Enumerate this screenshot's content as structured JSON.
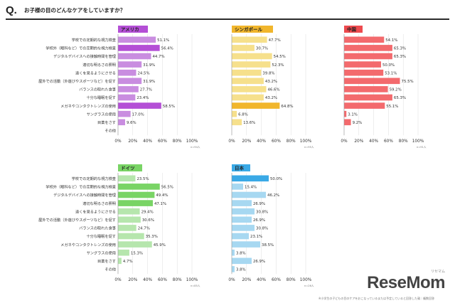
{
  "header": {
    "q_mark": "Q.",
    "question": "お子様の目のどんなケアをしていますか？"
  },
  "categories": [
    "学校での定期的な視力検査",
    "学校外（眼科など）での定期的な視力検査",
    "デジタルデバイスへの接触時間を管理",
    "適切な明るさの照明",
    "遠くを見るようにさせる",
    "屋外での活動（外遊びやスポーツなど）を促す",
    "バランスの取れた食事",
    "十分な睡眠を促す",
    "メガネやコンタクトレンズの使用",
    "サングラスの使用",
    "目薬をさす",
    "その他"
  ],
  "chart_data": [
    {
      "type": "bar",
      "name": "アメリカ",
      "n": "n=94人",
      "color": "#c98de0",
      "highlight_color": "#b44fd6",
      "values": [
        51.1,
        56.4,
        44.7,
        31.9,
        24.5,
        31.9,
        27.7,
        23.4,
        58.5,
        17.0,
        9.6,
        null
      ],
      "labels": [
        "51.1%",
        "56.4%",
        "44.7%",
        "31.9%",
        "24.5%",
        "31.9%",
        "27.7%",
        "23.4%",
        "58.5%",
        "17.0%",
        "9.6%",
        ""
      ],
      "highlight": [
        1,
        8
      ],
      "xlim": [
        0,
        100
      ],
      "ticks": [
        "0%",
        "20%",
        "40%",
        "60%",
        "80%",
        "100%"
      ]
    },
    {
      "type": "bar",
      "name": "シンガポール",
      "n": "n=95人",
      "color": "#f6e08c",
      "highlight_color": "#f1b62c",
      "values": [
        47.7,
        30.7,
        54.5,
        52.3,
        39.8,
        43.2,
        46.6,
        43.2,
        64.8,
        6.8,
        13.6,
        null
      ],
      "labels": [
        "47.7%",
        "30.7%",
        "54.5%",
        "52.3%",
        "39.8%",
        "43.2%",
        "46.6%",
        "43.2%",
        "64.8%",
        "6.8%",
        "13.6%",
        ""
      ],
      "highlight": [
        8
      ],
      "xlim": [
        0,
        100
      ],
      "ticks": [
        "0%",
        "20%",
        "40%",
        "60%",
        "80%",
        "100%"
      ]
    },
    {
      "type": "bar",
      "name": "中国",
      "n": "n=91人",
      "color": "#f36a6d",
      "highlight_color": "#ee4a4e",
      "values": [
        54.1,
        65.3,
        65.3,
        50.0,
        53.1,
        75.5,
        59.2,
        65.3,
        55.1,
        3.1,
        9.2,
        null
      ],
      "labels": [
        "54.1%",
        "65.3%",
        "65.3%",
        "50.0%",
        "53.1%",
        "75.5%",
        "59.2%",
        "65.3%",
        "55.1%",
        "3.1%",
        "9.2%",
        ""
      ],
      "highlight": [],
      "xlim": [
        0,
        100
      ],
      "ticks": [
        "0%",
        "20%",
        "40%",
        "60%",
        "80%",
        "100%"
      ]
    },
    {
      "type": "bar",
      "name": "ドイツ",
      "n": "n=85人",
      "color": "#b6e6ad",
      "highlight_color": "#79d465",
      "values": [
        23.5,
        56.5,
        49.4,
        47.1,
        29.4,
        30.6,
        24.7,
        35.3,
        45.9,
        15.3,
        4.7,
        null
      ],
      "labels": [
        "23.5%",
        "56.5%",
        "49.4%",
        "47.1%",
        "29.4%",
        "30.6%",
        "24.7%",
        "35.3%",
        "45.9%",
        "15.3%",
        "4.7%",
        ""
      ],
      "highlight": [
        1,
        2,
        3
      ],
      "xlim": [
        0,
        100
      ],
      "ticks": [
        "0%",
        "20%",
        "40%",
        "60%",
        "80%",
        "100%"
      ]
    },
    {
      "type": "bar",
      "name": "日本",
      "n": "n=26人",
      "color": "#a7d8f1",
      "highlight_color": "#3aa9e6",
      "values": [
        50.0,
        15.4,
        46.2,
        26.9,
        30.8,
        26.9,
        30.8,
        23.1,
        38.5,
        3.8,
        26.9,
        3.8
      ],
      "labels": [
        "50.0%",
        "15.4%",
        "46.2%",
        "26.9%",
        "30.8%",
        "26.9%",
        "30.8%",
        "23.1%",
        "38.5%",
        "3.8%",
        "26.9%",
        "3.8%"
      ],
      "highlight": [
        0
      ],
      "xlim": [
        0,
        100
      ],
      "ticks": [
        "0%",
        "20%",
        "40%",
        "60%",
        "80%",
        "100%"
      ]
    }
  ],
  "brand": {
    "name": "ReseMom",
    "sub": "リセマム"
  },
  "footnote": "※小学生の子どもの目のケアをおこなっているまたは予定していると回答した親｜複数回答"
}
